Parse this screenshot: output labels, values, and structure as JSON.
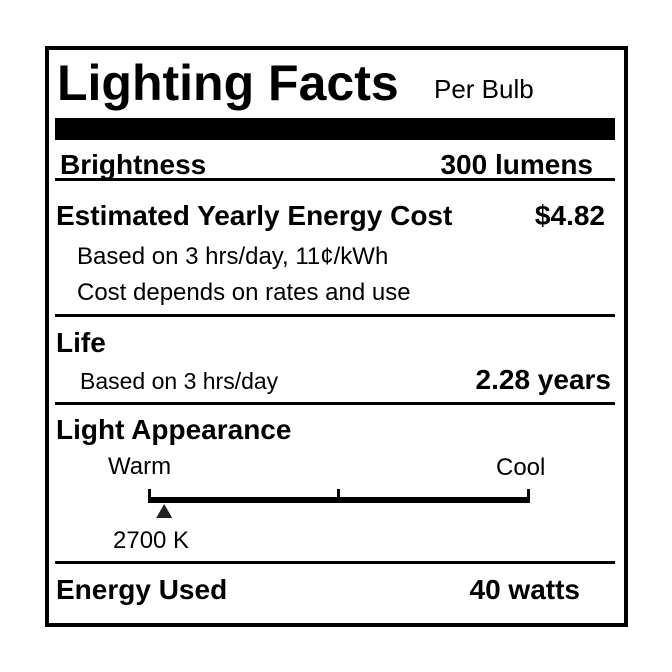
{
  "header": {
    "title": "Lighting Facts",
    "subtitle": "Per Bulb"
  },
  "brightness": {
    "label": "Brightness",
    "value": "300 lumens"
  },
  "energy_cost": {
    "label": "Estimated Yearly Energy Cost",
    "value": "$4.82",
    "note1": "Based on 3 hrs/day, 11¢/kWh",
    "note2": "Cost depends on rates and use"
  },
  "life": {
    "label": "Life",
    "note": "Based on 3 hrs/day",
    "value": "2.28 years"
  },
  "light_appearance": {
    "label": "Light Appearance",
    "warm_label": "Warm",
    "cool_label": "Cool",
    "value": "2700 K",
    "marker_fraction": 0.04
  },
  "energy_used": {
    "label": "Energy Used",
    "value": "40 watts"
  }
}
